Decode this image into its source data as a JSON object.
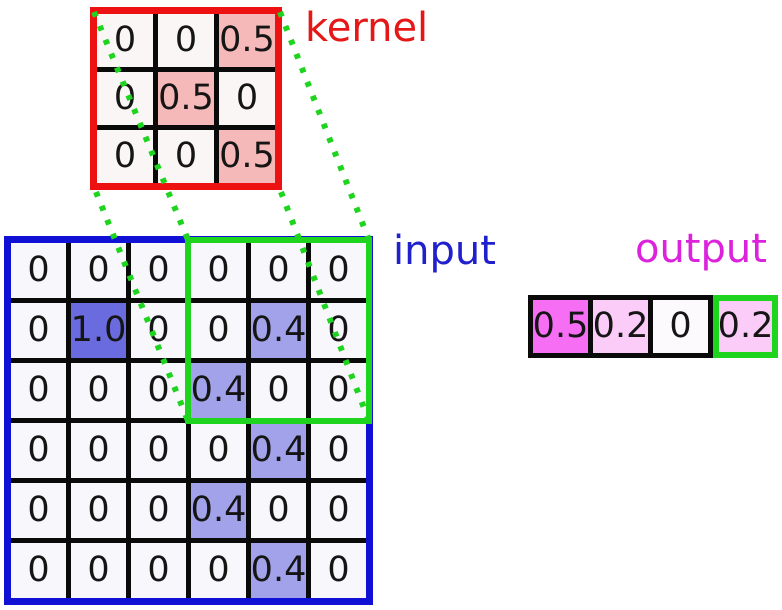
{
  "labels": {
    "kernel": "kernel",
    "input": "input",
    "output": "output"
  },
  "kernel": {
    "rows": [
      [
        "0",
        "0",
        "0.5"
      ],
      [
        "0",
        "0.5",
        "0"
      ],
      [
        "0",
        "0",
        "0.5"
      ]
    ]
  },
  "input": {
    "rows": [
      [
        "0",
        "0",
        "0",
        "0",
        "0",
        "0"
      ],
      [
        "0",
        "1.0",
        "0",
        "0",
        "0.4",
        "0"
      ],
      [
        "0",
        "0",
        "0",
        "0.4",
        "0",
        "0"
      ],
      [
        "0",
        "0",
        "0",
        "0",
        "0.4",
        "0"
      ],
      [
        "0",
        "0",
        "0",
        "0.4",
        "0",
        "0"
      ],
      [
        "0",
        "0",
        "0",
        "0",
        "0.4",
        "0"
      ]
    ]
  },
  "output": {
    "cells": [
      "0.5",
      "0.2",
      "0",
      "0.2"
    ],
    "active_index": 3
  },
  "colors": {
    "kernel_border": "#ee1111",
    "kernel_label": "#e61717",
    "input_border": "#1111d6",
    "input_label": "#2020cc",
    "output_label": "#dd22dd",
    "window": "#1fd41f",
    "grid_line": "#0a0a0a",
    "cell_fill": {
      "kernel": {
        "default": "#fbf6f6",
        "0.5": "#f6b9b9"
      },
      "input": {
        "default": "#f8f7fb",
        "1.0": "#6b6be0",
        "0.4": "#a2a2ea"
      },
      "output": {
        "default": "#fdfafd",
        "0.5": "#f66ef4",
        "0.2": "#fbccf8"
      }
    }
  }
}
